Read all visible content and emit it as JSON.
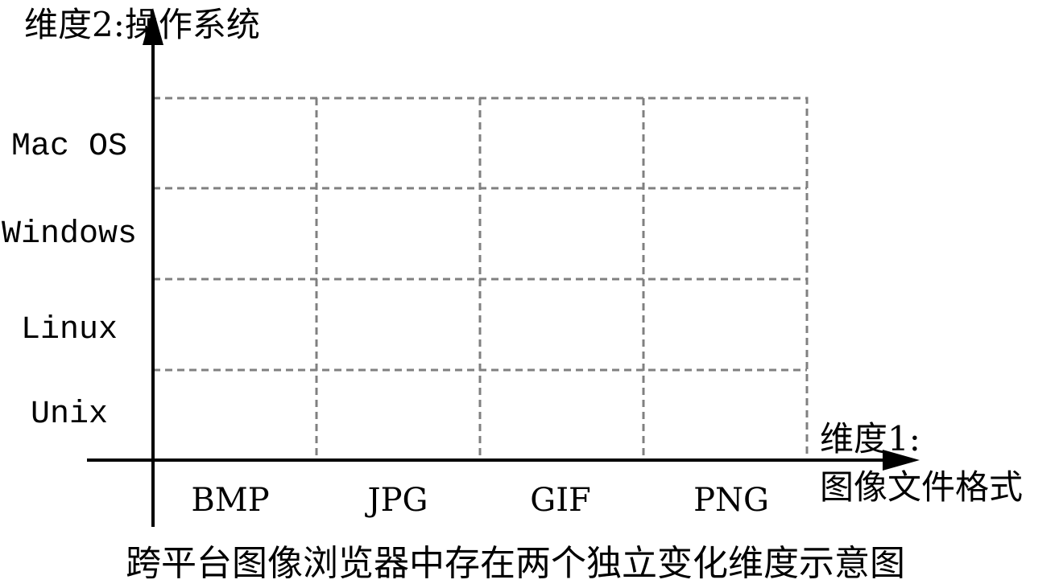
{
  "axes": {
    "y_title": "维度2:操作系统",
    "x_title_line1": "维度1:",
    "x_title_line2": "图像文件格式"
  },
  "rows": [
    "Mac OS",
    "Windows",
    "Linux",
    "Unix"
  ],
  "columns": [
    "BMP",
    "JPG",
    "GIF",
    "PNG"
  ],
  "caption": "跨平台图像浏览器中存在两个独立变化维度示意图",
  "colors": {
    "axis": "#000000",
    "grid": "#808080"
  }
}
